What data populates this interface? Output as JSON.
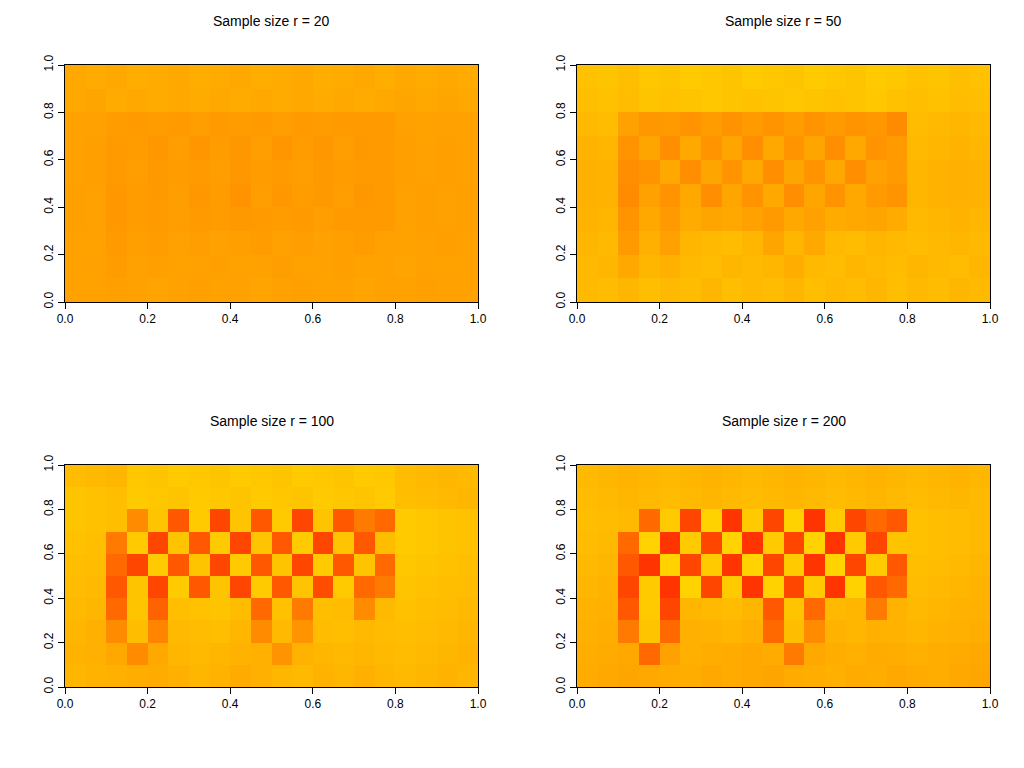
{
  "chart_data": [
    {
      "type": "heatmap",
      "title": "Sample size r = 20",
      "x": [
        0.025,
        0.075,
        0.125,
        0.175,
        0.225,
        0.275,
        0.325,
        0.375,
        0.425,
        0.475,
        0.525,
        0.575,
        0.625,
        0.675,
        0.725,
        0.775,
        0.825,
        0.875,
        0.925,
        0.975
      ],
      "y": [
        0.05,
        0.15,
        0.25,
        0.35,
        0.45,
        0.55,
        0.65,
        0.75,
        0.85,
        0.95
      ],
      "cells": [
        [
          0.55,
          0.56,
          0.54,
          0.55,
          0.57,
          0.55,
          0.54,
          0.56,
          0.55,
          0.57,
          0.55,
          0.54,
          0.56,
          0.55,
          0.57,
          0.55,
          0.56,
          0.54,
          0.55,
          0.56
        ],
        [
          0.56,
          0.55,
          0.52,
          0.55,
          0.54,
          0.56,
          0.55,
          0.54,
          0.56,
          0.55,
          0.53,
          0.56,
          0.55,
          0.54,
          0.56,
          0.55,
          0.57,
          0.55,
          0.56,
          0.55
        ],
        [
          0.55,
          0.56,
          0.5,
          0.54,
          0.52,
          0.55,
          0.53,
          0.55,
          0.54,
          0.52,
          0.55,
          0.53,
          0.55,
          0.54,
          0.52,
          0.55,
          0.56,
          0.55,
          0.54,
          0.56
        ],
        [
          0.54,
          0.55,
          0.48,
          0.52,
          0.5,
          0.53,
          0.5,
          0.52,
          0.49,
          0.5,
          0.52,
          0.5,
          0.53,
          0.51,
          0.5,
          0.5,
          0.55,
          0.54,
          0.55,
          0.54
        ],
        [
          0.54,
          0.55,
          0.48,
          0.52,
          0.49,
          0.53,
          0.48,
          0.52,
          0.46,
          0.53,
          0.48,
          0.52,
          0.49,
          0.53,
          0.48,
          0.5,
          0.55,
          0.54,
          0.55,
          0.54
        ],
        [
          0.55,
          0.54,
          0.5,
          0.53,
          0.49,
          0.52,
          0.5,
          0.53,
          0.48,
          0.52,
          0.5,
          0.53,
          0.49,
          0.52,
          0.5,
          0.51,
          0.54,
          0.55,
          0.54,
          0.55
        ],
        [
          0.55,
          0.54,
          0.5,
          0.52,
          0.48,
          0.53,
          0.47,
          0.52,
          0.48,
          0.53,
          0.47,
          0.52,
          0.48,
          0.53,
          0.49,
          0.5,
          0.54,
          0.55,
          0.54,
          0.55
        ],
        [
          0.56,
          0.55,
          0.52,
          0.5,
          0.52,
          0.5,
          0.53,
          0.5,
          0.52,
          0.5,
          0.53,
          0.5,
          0.52,
          0.5,
          0.51,
          0.5,
          0.55,
          0.56,
          0.55,
          0.56
        ],
        [
          0.6,
          0.58,
          0.62,
          0.6,
          0.62,
          0.6,
          0.62,
          0.6,
          0.62,
          0.6,
          0.62,
          0.6,
          0.62,
          0.6,
          0.62,
          0.6,
          0.58,
          0.6,
          0.58,
          0.6
        ],
        [
          0.6,
          0.62,
          0.6,
          0.64,
          0.62,
          0.6,
          0.64,
          0.62,
          0.6,
          0.64,
          0.62,
          0.6,
          0.64,
          0.62,
          0.6,
          0.64,
          0.6,
          0.62,
          0.6,
          0.62
        ]
      ],
      "zlim": [
        0,
        1
      ],
      "xlim": [
        0,
        1
      ],
      "ylim": [
        0,
        1
      ],
      "xticks": [
        {
          "value": 0,
          "label": "0.0"
        },
        0.2,
        0.4,
        0.6,
        0.8,
        {
          "value": 1,
          "label": "1.0"
        }
      ],
      "yticks": [
        {
          "value": 0,
          "label": "0.0"
        },
        0.2,
        0.4,
        0.6,
        0.8,
        {
          "value": 1,
          "label": "1.0"
        }
      ]
    },
    {
      "type": "heatmap",
      "title": "Sample size r = 50",
      "x": [
        0.025,
        0.075,
        0.125,
        0.175,
        0.225,
        0.275,
        0.325,
        0.375,
        0.425,
        0.475,
        0.525,
        0.575,
        0.625,
        0.675,
        0.725,
        0.775,
        0.825,
        0.875,
        0.925,
        0.975
      ],
      "y": [
        0.05,
        0.15,
        0.25,
        0.35,
        0.45,
        0.55,
        0.65,
        0.75,
        0.85,
        0.95
      ],
      "cells": [
        [
          0.72,
          0.74,
          0.7,
          0.76,
          0.72,
          0.74,
          0.7,
          0.76,
          0.72,
          0.74,
          0.7,
          0.76,
          0.72,
          0.74,
          0.7,
          0.76,
          0.72,
          0.74,
          0.7,
          0.72
        ],
        [
          0.72,
          0.7,
          0.6,
          0.7,
          0.66,
          0.72,
          0.74,
          0.7,
          0.72,
          0.7,
          0.64,
          0.72,
          0.74,
          0.7,
          0.72,
          0.74,
          0.7,
          0.72,
          0.74,
          0.7
        ],
        [
          0.7,
          0.72,
          0.5,
          0.66,
          0.55,
          0.7,
          0.72,
          0.74,
          0.7,
          0.58,
          0.7,
          0.6,
          0.72,
          0.74,
          0.7,
          0.72,
          0.74,
          0.72,
          0.7,
          0.72
        ],
        [
          0.68,
          0.7,
          0.45,
          0.6,
          0.5,
          0.62,
          0.58,
          0.6,
          0.55,
          0.5,
          0.6,
          0.55,
          0.62,
          0.6,
          0.58,
          0.62,
          0.72,
          0.7,
          0.68,
          0.7
        ],
        [
          0.66,
          0.68,
          0.4,
          0.55,
          0.45,
          0.6,
          0.42,
          0.58,
          0.45,
          0.6,
          0.42,
          0.58,
          0.45,
          0.6,
          0.5,
          0.45,
          0.7,
          0.68,
          0.66,
          0.68
        ],
        [
          0.66,
          0.68,
          0.42,
          0.45,
          0.6,
          0.42,
          0.58,
          0.45,
          0.6,
          0.42,
          0.58,
          0.45,
          0.6,
          0.42,
          0.55,
          0.5,
          0.7,
          0.68,
          0.66,
          0.68
        ],
        [
          0.68,
          0.7,
          0.45,
          0.58,
          0.42,
          0.6,
          0.45,
          0.58,
          0.42,
          0.6,
          0.45,
          0.58,
          0.42,
          0.6,
          0.45,
          0.5,
          0.72,
          0.7,
          0.68,
          0.7
        ],
        [
          0.72,
          0.74,
          0.55,
          0.48,
          0.5,
          0.45,
          0.52,
          0.45,
          0.5,
          0.45,
          0.52,
          0.45,
          0.5,
          0.45,
          0.48,
          0.4,
          0.74,
          0.72,
          0.7,
          0.72
        ],
        [
          0.76,
          0.78,
          0.74,
          0.8,
          0.78,
          0.8,
          0.82,
          0.8,
          0.78,
          0.8,
          0.82,
          0.8,
          0.78,
          0.8,
          0.82,
          0.78,
          0.76,
          0.78,
          0.74,
          0.76
        ],
        [
          0.78,
          0.8,
          0.76,
          0.82,
          0.8,
          0.84,
          0.82,
          0.8,
          0.84,
          0.82,
          0.8,
          0.84,
          0.82,
          0.8,
          0.84,
          0.82,
          0.78,
          0.8,
          0.76,
          0.78
        ]
      ],
      "zlim": [
        0,
        1
      ],
      "xlim": [
        0,
        1
      ],
      "ylim": [
        0,
        1
      ],
      "xticks": [
        {
          "value": 0,
          "label": "0.0"
        },
        0.2,
        0.4,
        0.6,
        0.8,
        {
          "value": 1,
          "label": "1.0"
        }
      ],
      "yticks": [
        {
          "value": 0,
          "label": "0.0"
        },
        0.2,
        0.4,
        0.6,
        0.8,
        {
          "value": 1,
          "label": "1.0"
        }
      ]
    },
    {
      "type": "heatmap",
      "title": "Sample size r = 100",
      "x": [
        0.025,
        0.075,
        0.125,
        0.175,
        0.225,
        0.275,
        0.325,
        0.375,
        0.425,
        0.475,
        0.525,
        0.575,
        0.625,
        0.675,
        0.725,
        0.775,
        0.825,
        0.875,
        0.925,
        0.975
      ],
      "y": [
        0.05,
        0.15,
        0.25,
        0.35,
        0.45,
        0.55,
        0.65,
        0.75,
        0.85,
        0.95
      ],
      "cells": [
        [
          0.7,
          0.68,
          0.66,
          0.64,
          0.62,
          0.66,
          0.7,
          0.68,
          0.62,
          0.66,
          0.7,
          0.72,
          0.68,
          0.7,
          0.66,
          0.7,
          0.72,
          0.7,
          0.68,
          0.7
        ],
        [
          0.68,
          0.66,
          0.6,
          0.4,
          0.6,
          0.7,
          0.72,
          0.7,
          0.68,
          0.66,
          0.45,
          0.68,
          0.7,
          0.72,
          0.7,
          0.72,
          0.74,
          0.72,
          0.7,
          0.68
        ],
        [
          0.7,
          0.66,
          0.4,
          0.75,
          0.38,
          0.72,
          0.74,
          0.76,
          0.7,
          0.4,
          0.72,
          0.45,
          0.74,
          0.76,
          0.72,
          0.74,
          0.76,
          0.74,
          0.72,
          0.7
        ],
        [
          0.72,
          0.7,
          0.3,
          0.8,
          0.28,
          0.76,
          0.78,
          0.8,
          0.74,
          0.3,
          0.78,
          0.35,
          0.76,
          0.74,
          0.4,
          0.72,
          0.78,
          0.76,
          0.74,
          0.72
        ],
        [
          0.74,
          0.72,
          0.25,
          0.8,
          0.2,
          0.85,
          0.25,
          0.8,
          0.2,
          0.85,
          0.25,
          0.8,
          0.22,
          0.85,
          0.3,
          0.35,
          0.8,
          0.78,
          0.76,
          0.74
        ],
        [
          0.76,
          0.74,
          0.3,
          0.2,
          0.85,
          0.25,
          0.8,
          0.2,
          0.85,
          0.25,
          0.8,
          0.2,
          0.85,
          0.25,
          0.8,
          0.3,
          0.82,
          0.8,
          0.78,
          0.76
        ],
        [
          0.78,
          0.76,
          0.35,
          0.85,
          0.2,
          0.8,
          0.25,
          0.85,
          0.2,
          0.8,
          0.25,
          0.85,
          0.2,
          0.8,
          0.25,
          0.75,
          0.84,
          0.82,
          0.8,
          0.78
        ],
        [
          0.8,
          0.78,
          0.76,
          0.4,
          0.8,
          0.25,
          0.85,
          0.2,
          0.8,
          0.25,
          0.85,
          0.2,
          0.8,
          0.25,
          0.35,
          0.3,
          0.84,
          0.82,
          0.8,
          0.78
        ],
        [
          0.8,
          0.78,
          0.76,
          0.84,
          0.82,
          0.8,
          0.84,
          0.82,
          0.8,
          0.84,
          0.82,
          0.8,
          0.84,
          0.82,
          0.8,
          0.84,
          0.76,
          0.74,
          0.72,
          0.7
        ],
        [
          0.74,
          0.72,
          0.7,
          0.82,
          0.8,
          0.84,
          0.82,
          0.8,
          0.84,
          0.82,
          0.8,
          0.84,
          0.82,
          0.8,
          0.84,
          0.82,
          0.74,
          0.72,
          0.7,
          0.72
        ]
      ],
      "zlim": [
        0,
        1
      ],
      "xlim": [
        0,
        1
      ],
      "ylim": [
        0,
        1
      ],
      "xticks": [
        {
          "value": 0,
          "label": "0.0"
        },
        0.2,
        0.4,
        0.6,
        0.8,
        {
          "value": 1,
          "label": "1.0"
        }
      ],
      "yticks": [
        {
          "value": 0,
          "label": "0.0"
        },
        0.2,
        0.4,
        0.6,
        0.8,
        {
          "value": 1,
          "label": "1.0"
        }
      ]
    },
    {
      "type": "heatmap",
      "title": "Sample size r = 200",
      "x": [
        0.025,
        0.075,
        0.125,
        0.175,
        0.225,
        0.275,
        0.325,
        0.375,
        0.425,
        0.475,
        0.525,
        0.575,
        0.625,
        0.675,
        0.725,
        0.775,
        0.825,
        0.875,
        0.925,
        0.975
      ],
      "y": [
        0.05,
        0.15,
        0.25,
        0.35,
        0.45,
        0.55,
        0.65,
        0.75,
        0.85,
        0.95
      ],
      "cells": [
        [
          0.62,
          0.6,
          0.58,
          0.6,
          0.62,
          0.64,
          0.6,
          0.62,
          0.6,
          0.58,
          0.62,
          0.64,
          0.66,
          0.62,
          0.64,
          0.6,
          0.62,
          0.64,
          0.6,
          0.58
        ],
        [
          0.64,
          0.62,
          0.6,
          0.3,
          0.55,
          0.66,
          0.64,
          0.62,
          0.6,
          0.62,
          0.35,
          0.6,
          0.64,
          0.66,
          0.62,
          0.64,
          0.66,
          0.64,
          0.62,
          0.6
        ],
        [
          0.66,
          0.64,
          0.35,
          0.8,
          0.3,
          0.66,
          0.68,
          0.7,
          0.66,
          0.3,
          0.75,
          0.4,
          0.68,
          0.7,
          0.66,
          0.68,
          0.7,
          0.68,
          0.66,
          0.64
        ],
        [
          0.68,
          0.66,
          0.25,
          0.85,
          0.2,
          0.7,
          0.72,
          0.74,
          0.7,
          0.25,
          0.8,
          0.3,
          0.72,
          0.7,
          0.35,
          0.68,
          0.72,
          0.7,
          0.68,
          0.66
        ],
        [
          0.7,
          0.68,
          0.2,
          0.85,
          0.15,
          0.9,
          0.2,
          0.85,
          0.15,
          0.9,
          0.2,
          0.85,
          0.15,
          0.9,
          0.25,
          0.3,
          0.74,
          0.72,
          0.7,
          0.68
        ],
        [
          0.72,
          0.7,
          0.25,
          0.15,
          0.9,
          0.2,
          0.85,
          0.15,
          0.9,
          0.2,
          0.85,
          0.15,
          0.9,
          0.2,
          0.85,
          0.25,
          0.76,
          0.74,
          0.72,
          0.7
        ],
        [
          0.74,
          0.72,
          0.3,
          0.9,
          0.15,
          0.85,
          0.2,
          0.9,
          0.15,
          0.85,
          0.2,
          0.9,
          0.15,
          0.85,
          0.2,
          0.8,
          0.78,
          0.76,
          0.74,
          0.72
        ],
        [
          0.76,
          0.74,
          0.72,
          0.3,
          0.85,
          0.2,
          0.9,
          0.15,
          0.85,
          0.2,
          0.9,
          0.15,
          0.85,
          0.2,
          0.3,
          0.25,
          0.78,
          0.76,
          0.74,
          0.72
        ],
        [
          0.74,
          0.72,
          0.7,
          0.72,
          0.74,
          0.72,
          0.7,
          0.72,
          0.74,
          0.72,
          0.7,
          0.72,
          0.74,
          0.72,
          0.7,
          0.72,
          0.74,
          0.72,
          0.7,
          0.72
        ],
        [
          0.72,
          0.7,
          0.68,
          0.7,
          0.72,
          0.7,
          0.68,
          0.7,
          0.72,
          0.7,
          0.68,
          0.7,
          0.72,
          0.7,
          0.68,
          0.7,
          0.72,
          0.7,
          0.68,
          0.7
        ]
      ],
      "zlim": [
        0,
        1
      ],
      "xlim": [
        0,
        1
      ],
      "ylim": [
        0,
        1
      ],
      "xticks": [
        {
          "value": 0,
          "label": "0.0"
        },
        0.2,
        0.4,
        0.6,
        0.8,
        {
          "value": 1,
          "label": "1.0"
        }
      ],
      "yticks": [
        {
          "value": 0,
          "label": "0.0"
        },
        0.2,
        0.4,
        0.6,
        0.8,
        {
          "value": 1,
          "label": "1.0"
        }
      ]
    }
  ]
}
